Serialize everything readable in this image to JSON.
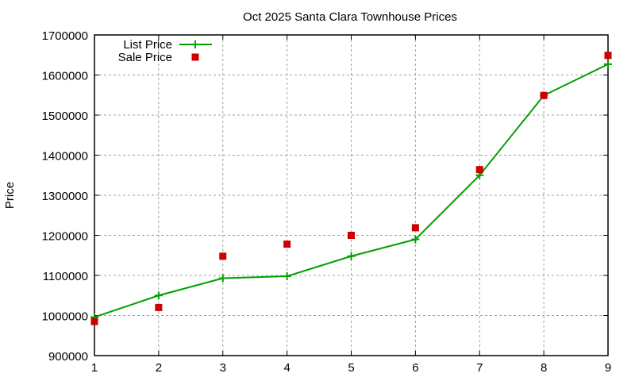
{
  "chart_data": {
    "type": "line",
    "title": "Oct 2025 Santa Clara Townhouse Prices",
    "xlabel": "",
    "ylabel": "Price",
    "x": [
      1,
      2,
      3,
      4,
      5,
      6,
      7,
      8,
      9
    ],
    "xlim": [
      1,
      9
    ],
    "ylim": [
      900000,
      1700000
    ],
    "xticks": [
      1,
      2,
      3,
      4,
      5,
      6,
      7,
      8,
      9
    ],
    "yticks": [
      900000,
      1000000,
      1100000,
      1200000,
      1300000,
      1400000,
      1500000,
      1600000,
      1700000
    ],
    "grid": true,
    "legend_position": "top-left",
    "series": [
      {
        "name": "List Price",
        "style": "linespoints",
        "color": "#00a000",
        "marker": "plus",
        "values": [
          996000,
          1050000,
          1093000,
          1098000,
          1148000,
          1190000,
          1350000,
          1549000,
          1627000
        ]
      },
      {
        "name": "Sale Price",
        "style": "points",
        "color": "#cc0000",
        "marker": "square",
        "values": [
          985000,
          1020000,
          1148000,
          1178000,
          1200000,
          1219000,
          1364000,
          1549000,
          1649000
        ]
      }
    ]
  }
}
